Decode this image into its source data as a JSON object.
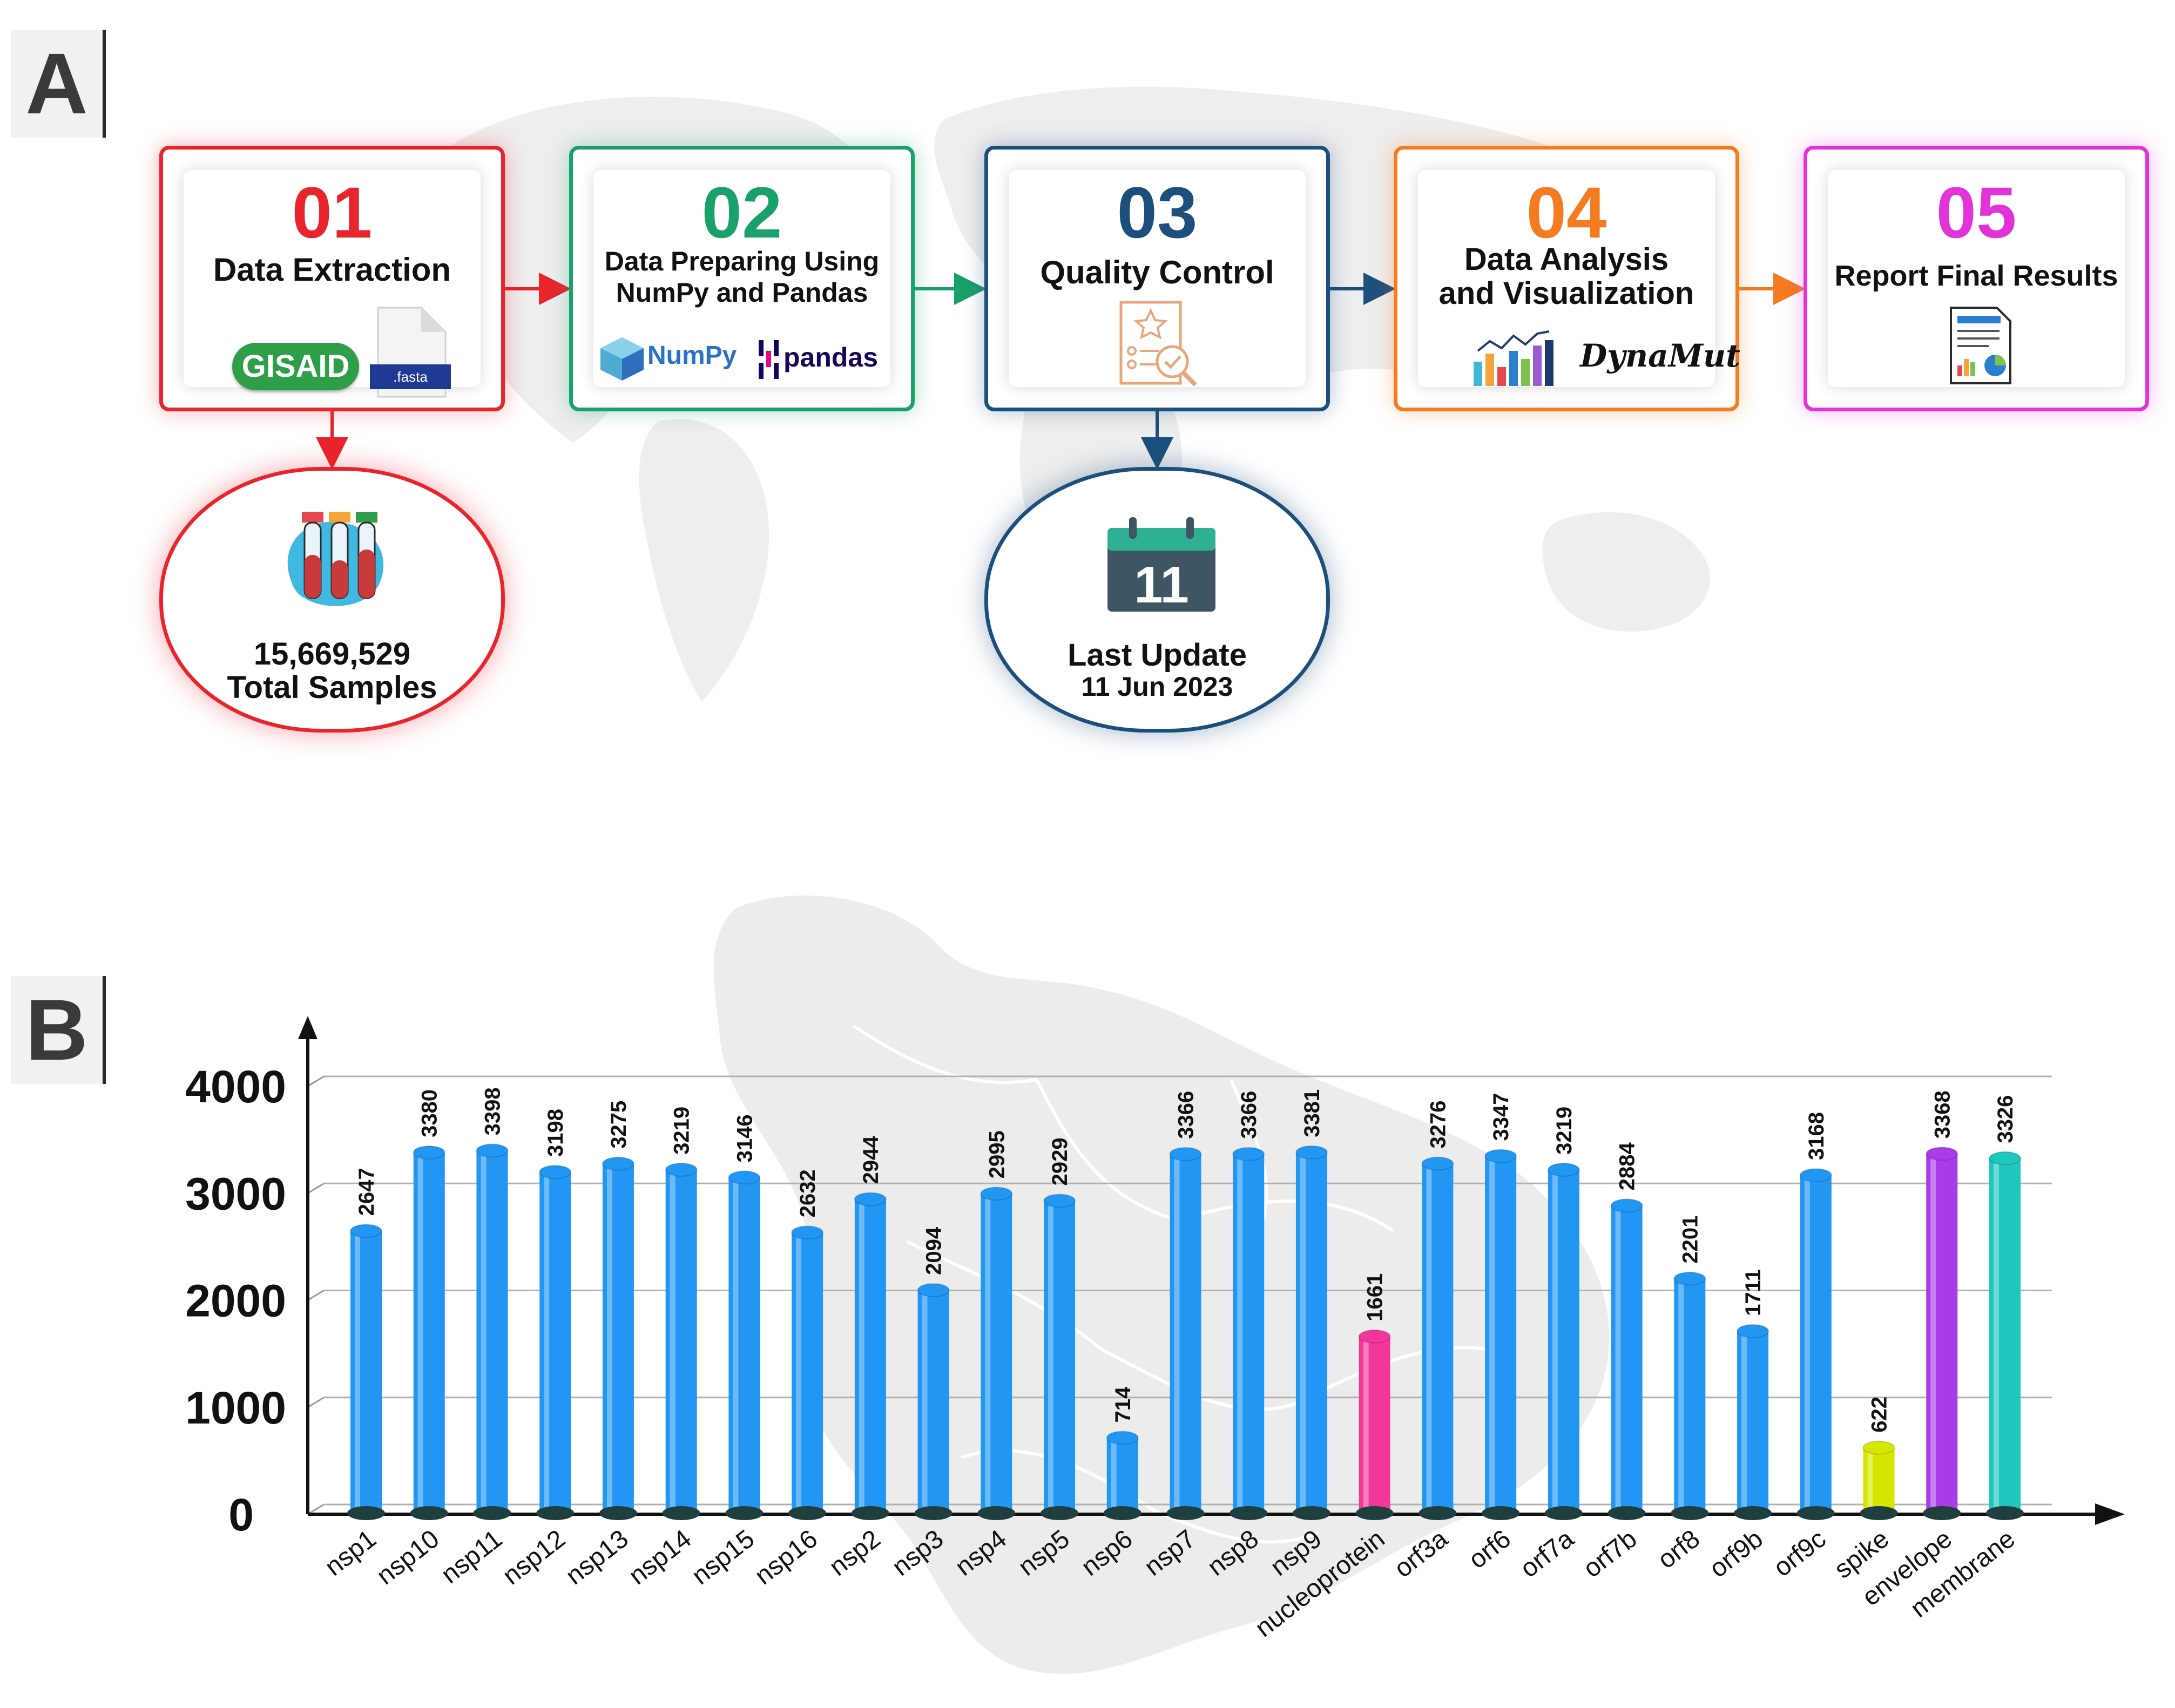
{
  "panel_a_letter": "A",
  "panel_b_letter": "B",
  "steps": [
    {
      "num": "01",
      "title_lines": [
        "Data Extraction"
      ],
      "color": "#e8242c",
      "icons": [
        "gisaid-logo",
        "fasta-file-icon"
      ],
      "logo_text": "GISAID",
      "file_text": ".fasta"
    },
    {
      "num": "02",
      "title_lines": [
        "Data Preparing Using",
        "NumPy and Pandas"
      ],
      "color": "#1aa06b",
      "icons": [
        "numpy-logo",
        "pandas-logo"
      ],
      "logo_text": "NumPy",
      "logo2_text": "pandas"
    },
    {
      "num": "03",
      "title_lines": [
        "Quality Control"
      ],
      "color": "#1d4f7d",
      "icons": [
        "quality-checklist-icon"
      ]
    },
    {
      "num": "04",
      "title_lines": [
        "Data Analysis",
        "and Visualization"
      ],
      "color": "#f47b20",
      "icons": [
        "analytics-chart-icon",
        "dynamut-logo"
      ],
      "logo_text": "DynaMut"
    },
    {
      "num": "05",
      "title_lines": [
        "Report Final Results"
      ],
      "color": "#e233d8",
      "icons": [
        "report-document-icon"
      ]
    }
  ],
  "samples": {
    "count": "15,669,529",
    "label": "Total Samples",
    "icon": "test-tubes-icon"
  },
  "update": {
    "day": "11",
    "label": "Last Update",
    "date": "11 Jun 2023",
    "icon": "calendar-icon"
  },
  "chart_data": {
    "type": "bar",
    "categories": [
      "nsp1",
      "nsp10",
      "nsp11",
      "nsp12",
      "nsp13",
      "nsp14",
      "nsp15",
      "nsp16",
      "nsp2",
      "nsp3",
      "nsp4",
      "nsp5",
      "nsp6",
      "nsp7",
      "nsp8",
      "nsp9",
      "nucleoprotein",
      "orf3a",
      "orf6",
      "orf7a",
      "orf7b",
      "orf8",
      "orf9b",
      "orf9c",
      "spike",
      "envelope",
      "membrane"
    ],
    "values": [
      2647,
      3380,
      3398,
      3198,
      3275,
      3219,
      3146,
      2632,
      2944,
      2094,
      2995,
      2929,
      714,
      3366,
      3366,
      3381,
      1661,
      3276,
      3347,
      3219,
      2884,
      2201,
      1711,
      3168,
      622,
      3368,
      3326
    ],
    "value_labels": [
      "2647",
      "3380",
      "3398",
      "3198",
      "3275",
      "3219",
      "3146",
      "2632",
      "2944",
      "2094",
      "2995",
      "2929",
      "714",
      "3366",
      "3366",
      "3381",
      "1661",
      "3276",
      "3347",
      "3219",
      "2884",
      "2201",
      "1711",
      "3168",
      "622",
      "3368",
      "3326"
    ],
    "colors": [
      "#2196f3",
      "#2196f3",
      "#2196f3",
      "#2196f3",
      "#2196f3",
      "#2196f3",
      "#2196f3",
      "#2196f3",
      "#2196f3",
      "#2196f3",
      "#2196f3",
      "#2196f3",
      "#2196f3",
      "#2196f3",
      "#2196f3",
      "#2196f3",
      "#f2379b",
      "#2196f3",
      "#2196f3",
      "#2196f3",
      "#2196f3",
      "#2196f3",
      "#2196f3",
      "#2196f3",
      "#d7e600",
      "#a93ce6",
      "#1fc6bd"
    ],
    "yticks": [
      "0",
      "1000",
      "2000",
      "3000",
      "4000"
    ],
    "ylim": [
      0,
      4000
    ],
    "grid": true,
    "title": "",
    "xlabel": "",
    "ylabel": ""
  }
}
